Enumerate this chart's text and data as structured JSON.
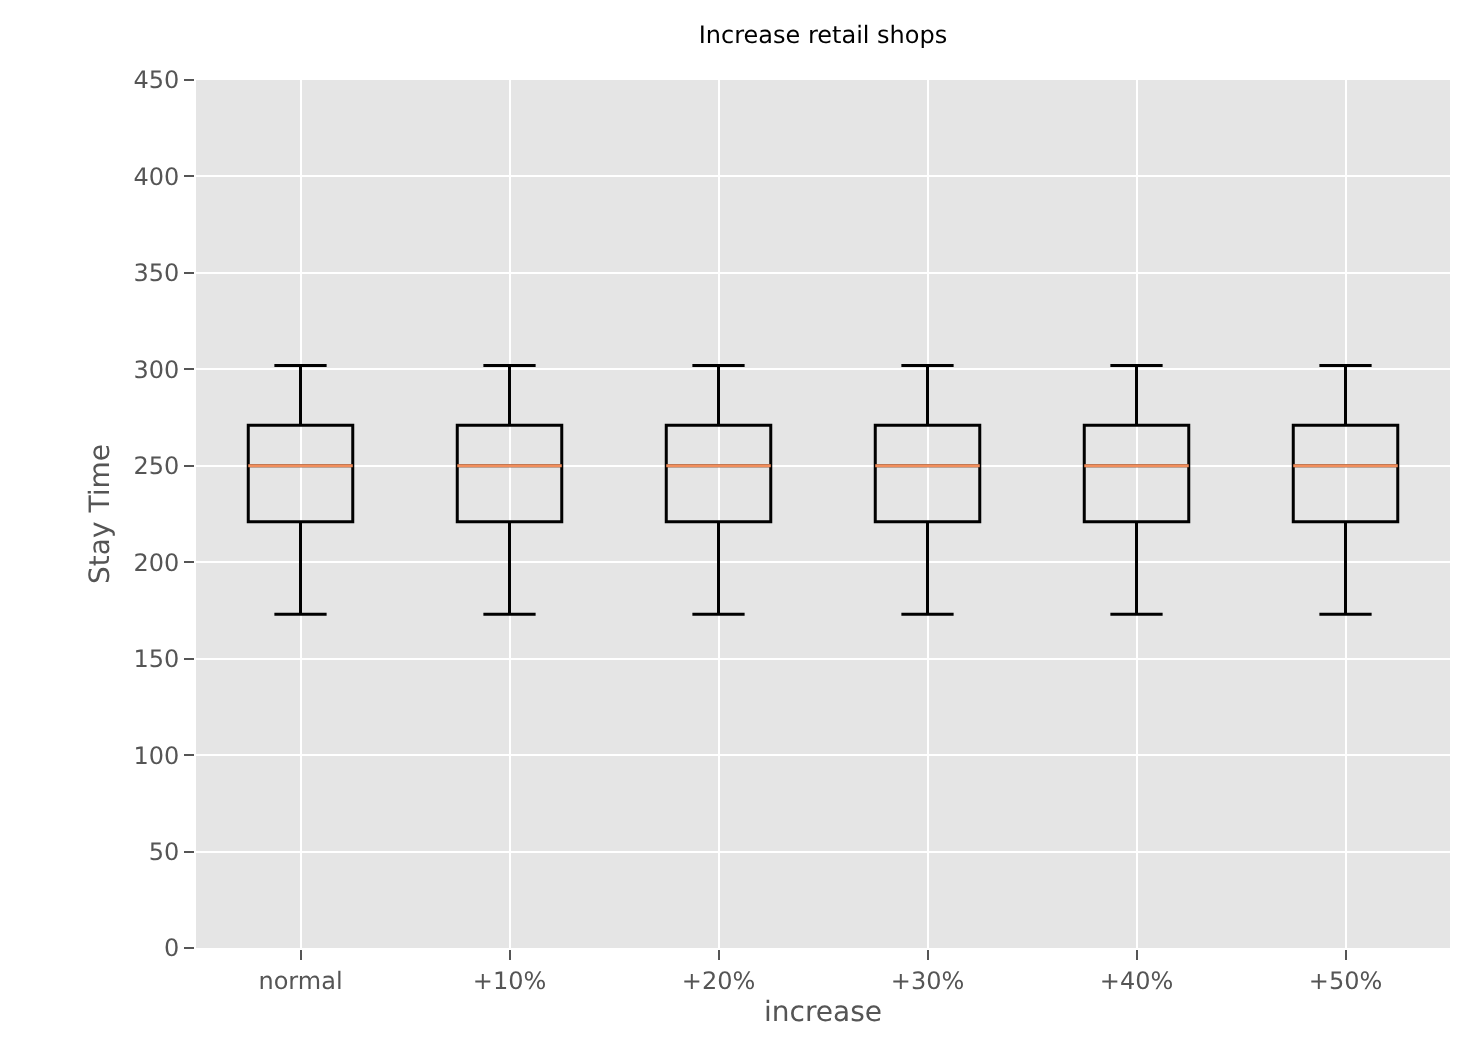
{
  "chart_data": {
    "type": "box",
    "title": "Increase retail shops",
    "xlabel": "increase",
    "ylabel": "Stay Time",
    "categories": [
      "normal",
      "+10%",
      "+20%",
      "+30%",
      "+40%",
      "+50%"
    ],
    "boxes": [
      {
        "low": 173,
        "q1": 221,
        "median": 250,
        "q3": 271,
        "high": 302
      },
      {
        "low": 173,
        "q1": 221,
        "median": 250,
        "q3": 271,
        "high": 302
      },
      {
        "low": 173,
        "q1": 221,
        "median": 250,
        "q3": 271,
        "high": 302
      },
      {
        "low": 173,
        "q1": 221,
        "median": 250,
        "q3": 271,
        "high": 302
      },
      {
        "low": 173,
        "q1": 221,
        "median": 250,
        "q3": 271,
        "high": 302
      },
      {
        "low": 173,
        "q1": 221,
        "median": 250,
        "q3": 271,
        "high": 302
      }
    ],
    "ylim": [
      0,
      450
    ],
    "yticks": [
      0,
      50,
      100,
      150,
      200,
      250,
      300,
      350,
      400,
      450
    ],
    "grid": true,
    "legend": false
  }
}
